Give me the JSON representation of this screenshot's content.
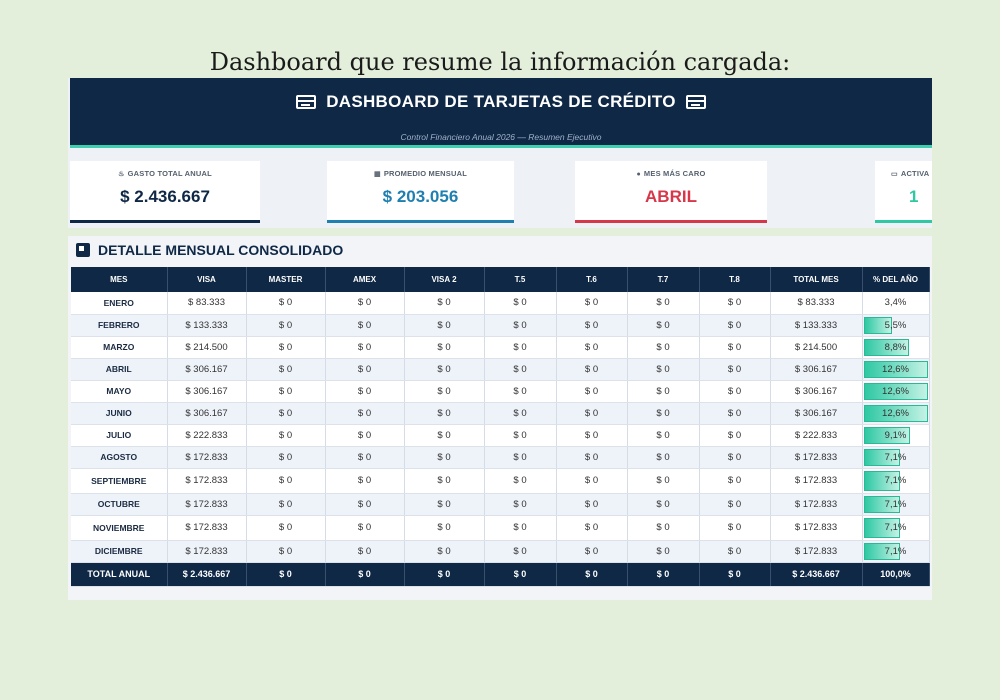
{
  "caption": "Dashboard que resume la información cargada:",
  "header": {
    "title": "DASHBOARD DE TARJETAS DE CRÉDITO",
    "subtitle": "Control Financiero Anual 2026 — Resumen Ejecutivo"
  },
  "kpis": [
    {
      "label": "GASTO TOTAL ANUAL",
      "value": "$ 2.436.667",
      "icon": "fire-icon",
      "color": "#0f2846"
    },
    {
      "label": "PROMEDIO MENSUAL",
      "value": "$ 203.056",
      "icon": "calendar-icon",
      "color": "#1e7fb0"
    },
    {
      "label": "MES MÁS CARO",
      "value": "ABRIL",
      "icon": "drop-icon",
      "color": "#d6384a"
    },
    {
      "label": "ACTIVA",
      "value": "1",
      "icon": "car-icon",
      "color": "#2ec8a3"
    }
  ],
  "panel": {
    "title": "DETALLE MENSUAL CONSOLIDADO"
  },
  "table": {
    "headers": [
      "MES",
      "VISA",
      "MASTER",
      "AMEX",
      "VISA 2",
      "T.5",
      "T.6",
      "T.7",
      "T.8",
      "TOTAL MES",
      "% DEL AÑO"
    ],
    "rows": [
      {
        "mes": "ENERO",
        "visa": "$ 83.333",
        "master": "$ 0",
        "amex": "$ 0",
        "visa2": "$ 0",
        "t5": "$ 0",
        "t6": "$ 0",
        "t7": "$ 0",
        "t8": "$ 0",
        "total": "$ 83.333",
        "pct": "3,4%",
        "pct_value": 3.4
      },
      {
        "mes": "FEBRERO",
        "visa": "$ 133.333",
        "master": "$ 0",
        "amex": "$ 0",
        "visa2": "$ 0",
        "t5": "$ 0",
        "t6": "$ 0",
        "t7": "$ 0",
        "t8": "$ 0",
        "total": "$ 133.333",
        "pct": "5,5%",
        "pct_value": 5.5
      },
      {
        "mes": "MARZO",
        "visa": "$ 214.500",
        "master": "$ 0",
        "amex": "$ 0",
        "visa2": "$ 0",
        "t5": "$ 0",
        "t6": "$ 0",
        "t7": "$ 0",
        "t8": "$ 0",
        "total": "$ 214.500",
        "pct": "8,8%",
        "pct_value": 8.8
      },
      {
        "mes": "ABRIL",
        "visa": "$ 306.167",
        "master": "$ 0",
        "amex": "$ 0",
        "visa2": "$ 0",
        "t5": "$ 0",
        "t6": "$ 0",
        "t7": "$ 0",
        "t8": "$ 0",
        "total": "$ 306.167",
        "pct": "12,6%",
        "pct_value": 12.6
      },
      {
        "mes": "MAYO",
        "visa": "$ 306.167",
        "master": "$ 0",
        "amex": "$ 0",
        "visa2": "$ 0",
        "t5": "$ 0",
        "t6": "$ 0",
        "t7": "$ 0",
        "t8": "$ 0",
        "total": "$ 306.167",
        "pct": "12,6%",
        "pct_value": 12.6
      },
      {
        "mes": "JUNIO",
        "visa": "$ 306.167",
        "master": "$ 0",
        "amex": "$ 0",
        "visa2": "$ 0",
        "t5": "$ 0",
        "t6": "$ 0",
        "t7": "$ 0",
        "t8": "$ 0",
        "total": "$ 306.167",
        "pct": "12,6%",
        "pct_value": 12.6
      },
      {
        "mes": "JULIO",
        "visa": "$ 222.833",
        "master": "$ 0",
        "amex": "$ 0",
        "visa2": "$ 0",
        "t5": "$ 0",
        "t6": "$ 0",
        "t7": "$ 0",
        "t8": "$ 0",
        "total": "$ 222.833",
        "pct": "9,1%",
        "pct_value": 9.1
      },
      {
        "mes": "AGOSTO",
        "visa": "$ 172.833",
        "master": "$ 0",
        "amex": "$ 0",
        "visa2": "$ 0",
        "t5": "$ 0",
        "t6": "$ 0",
        "t7": "$ 0",
        "t8": "$ 0",
        "total": "$ 172.833",
        "pct": "7,1%",
        "pct_value": 7.1
      },
      {
        "mes": "SEPTIEMBRE",
        "visa": "$ 172.833",
        "master": "$ 0",
        "amex": "$ 0",
        "visa2": "$ 0",
        "t5": "$ 0",
        "t6": "$ 0",
        "t7": "$ 0",
        "t8": "$ 0",
        "total": "$ 172.833",
        "pct": "7,1%",
        "pct_value": 7.1
      },
      {
        "mes": "OCTUBRE",
        "visa": "$ 172.833",
        "master": "$ 0",
        "amex": "$ 0",
        "visa2": "$ 0",
        "t5": "$ 0",
        "t6": "$ 0",
        "t7": "$ 0",
        "t8": "$ 0",
        "total": "$ 172.833",
        "pct": "7,1%",
        "pct_value": 7.1
      },
      {
        "mes": "NOVIEMBRE",
        "visa": "$ 172.833",
        "master": "$ 0",
        "amex": "$ 0",
        "visa2": "$ 0",
        "t5": "$ 0",
        "t6": "$ 0",
        "t7": "$ 0",
        "t8": "$ 0",
        "total": "$ 172.833",
        "pct": "7,1%",
        "pct_value": 7.1
      },
      {
        "mes": "DICIEMBRE",
        "visa": "$ 172.833",
        "master": "$ 0",
        "amex": "$ 0",
        "visa2": "$ 0",
        "t5": "$ 0",
        "t6": "$ 0",
        "t7": "$ 0",
        "t8": "$ 0",
        "total": "$ 172.833",
        "pct": "7,1%",
        "pct_value": 7.1
      }
    ],
    "total_row": {
      "mes": "TOTAL ANUAL",
      "visa": "$ 2.436.667",
      "master": "$ 0",
      "amex": "$ 0",
      "visa2": "$ 0",
      "t5": "$ 0",
      "t6": "$ 0",
      "t7": "$ 0",
      "t8": "$ 0",
      "total": "$ 2.436.667",
      "pct": "100,0%"
    }
  }
}
